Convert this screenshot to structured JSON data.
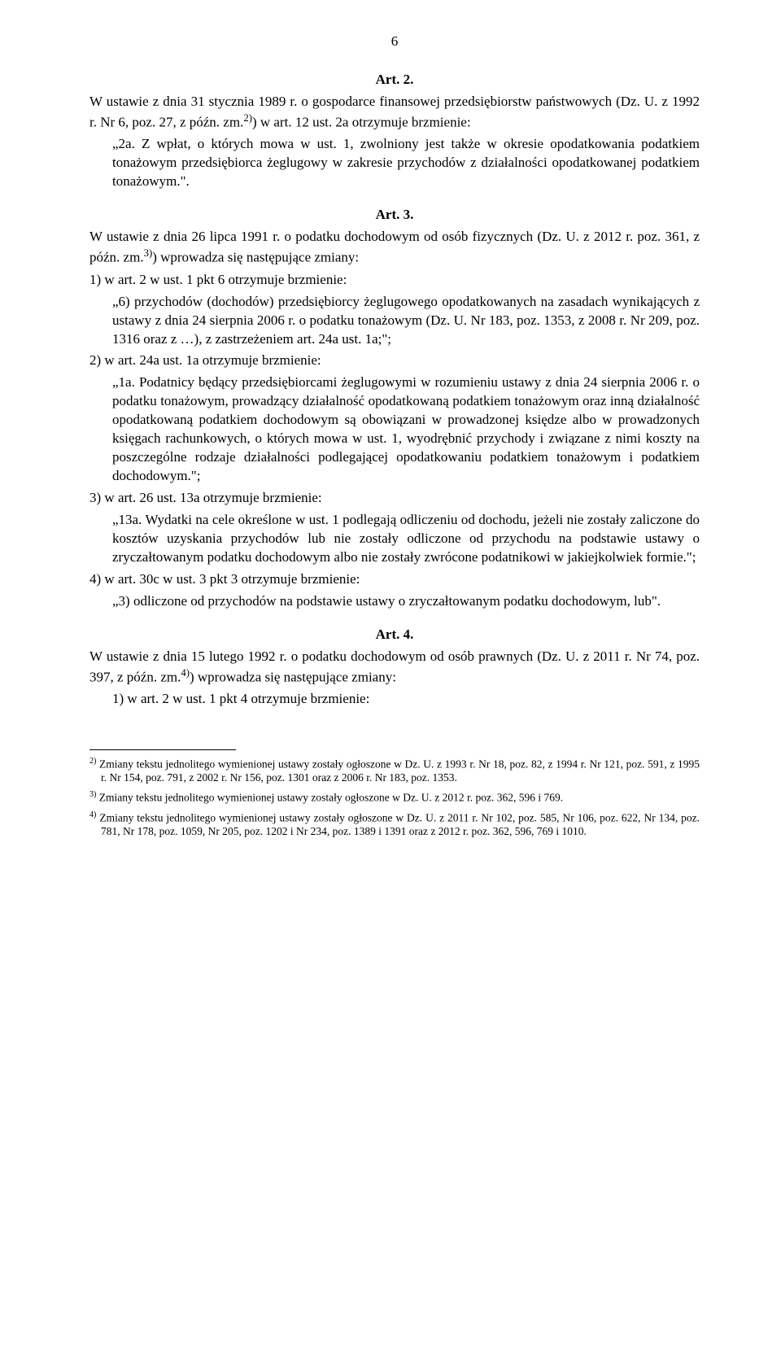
{
  "page_number": "6",
  "art2": {
    "heading": "Art. 2.",
    "para1_a": "W ustawie z dnia 31 stycznia 1989 r. o gospodarce finansowej przedsiębiorstw państwowych (Dz. U. z 1992 r. Nr 6, poz. 27, z późn. zm.",
    "para1_sup": "2)",
    "para1_b": ") w art. 12 ust. 2a otrzymuje brzmienie:",
    "quote": "„2a. Z wpłat, o których mowa w ust. 1, zwolniony jest także w okresie opodatkowania podatkiem tonażowym przedsiębiorca żeglugowy w zakresie przychodów z działalności opodatkowanej podatkiem tonażowym.\"."
  },
  "art3": {
    "heading": "Art. 3.",
    "intro_a": "W ustawie z dnia 26 lipca 1991 r. o podatku dochodowym od osób fizycznych (Dz. U. z 2012 r. poz. 361, z późn. zm.",
    "intro_sup": "3)",
    "intro_b": ") wprowadza się następujące zmiany:",
    "item1_lead": "1) w art. 2 w ust. 1 pkt 6 otrzymuje brzmienie:",
    "item1_quote": "„6) przychodów (dochodów) przedsiębiorcy żeglugowego opodatkowanych na zasadach wynikających z ustawy z dnia 24 sierpnia 2006 r. o podatku tonażowym (Dz. U. Nr 183, poz. 1353, z 2008 r. Nr 209, poz. 1316 oraz z …), z zastrzeżeniem art. 24a ust. 1a;\";",
    "item2_lead": "2) w art. 24a ust. 1a otrzymuje brzmienie:",
    "item2_quote": "„1a. Podatnicy będący przedsiębiorcami żeglugowymi w rozumieniu ustawy z dnia 24 sierpnia 2006 r. o podatku tonażowym, prowadzący działalność opodatkowaną podatkiem tonażowym oraz inną działalność opodatkowaną podatkiem dochodowym są obowiązani w prowadzonej księdze albo w prowadzonych księgach rachunkowych, o których mowa w ust. 1, wyodrębnić przychody i związane z nimi koszty na poszczególne rodzaje działalności podlegającej opodatkowaniu podatkiem tonażowym i podatkiem dochodowym.\";",
    "item3_lead": "3) w art. 26 ust. 13a otrzymuje brzmienie:",
    "item3_quote": "„13a. Wydatki na cele określone w ust. 1 podlegają odliczeniu od dochodu, jeżeli nie zostały zaliczone do kosztów uzyskania przychodów lub nie zostały odliczone od przychodu na podstawie ustawy o zryczałtowanym podatku dochodowym albo nie zostały zwrócone podatnikowi w jakiejkolwiek formie.\";",
    "item4_lead": "4) w art. 30c w ust. 3 pkt 3 otrzymuje brzmienie:",
    "item4_quote": "„3) odliczone od przychodów na podstawie ustawy o zryczałtowanym podatku dochodowym, lub\"."
  },
  "art4": {
    "heading": "Art. 4.",
    "intro_a": "W ustawie z dnia 15 lutego 1992 r. o podatku dochodowym od osób prawnych (Dz. U. z 2011 r. Nr 74, poz. 397, z późn. zm.",
    "intro_sup": "4)",
    "intro_b": ") wprowadza się następujące zmiany:",
    "item1": "1) w art. 2 w ust. 1 pkt 4 otrzymuje brzmienie:"
  },
  "footnotes": {
    "f2_sup": "2)",
    "f2": " Zmiany tekstu jednolitego wymienionej ustawy zostały ogłoszone w Dz. U. z 1993 r. Nr 18, poz. 82, z 1994 r. Nr 121, poz. 591, z 1995 r. Nr 154, poz. 791, z 2002 r. Nr 156, poz. 1301 oraz z 2006 r. Nr 183, poz. 1353.",
    "f3_sup": "3)",
    "f3": " Zmiany tekstu jednolitego wymienionej ustawy zostały ogłoszone w Dz. U. z 2012 r. poz. 362, 596 i 769.",
    "f4_sup": "4)",
    "f4": " Zmiany tekstu jednolitego wymienionej ustawy zostały ogłoszone w Dz. U. z 2011 r. Nr 102, poz. 585, Nr 106, poz. 622, Nr 134, poz. 781, Nr 178, poz. 1059, Nr 205, poz. 1202 i Nr 234, poz. 1389 i 1391 oraz z 2012 r. poz. 362, 596, 769 i 1010."
  }
}
